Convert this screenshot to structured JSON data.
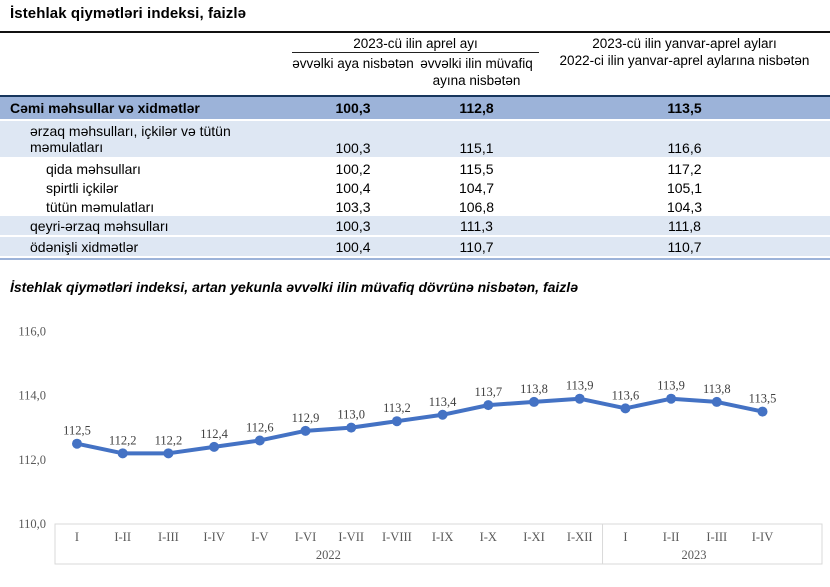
{
  "page_title": "İstehlak qiymətləri indeksi, faizlə",
  "table": {
    "group_header": "2023-cü ilin aprel ayı",
    "col2_header": "əvvəlki aya nisbətən",
    "col3_header": "əvvəlki ilin müvafiq ayına nisbətən",
    "col4_header_line1": "2023-cü ilin yanvar-aprel ayları",
    "col4_header_line2": "2022-ci ilin yanvar-aprel aylarına nisbətən",
    "rows": [
      {
        "label": "Cəmi məhsullar və xidmətlər",
        "values": [
          "100,3",
          "112,8",
          "113,5"
        ],
        "style": "total"
      },
      {
        "label": "ərzaq məhsulları, içkilər və tütün məmulatları",
        "values": [
          "100,3",
          "115,1",
          "116,6"
        ],
        "style": "group tall"
      },
      {
        "label": "qida məhsulları",
        "values": [
          "100,2",
          "115,5",
          "117,2"
        ],
        "style": "sub"
      },
      {
        "label": "spirtli içkilər",
        "values": [
          "100,4",
          "104,7",
          "105,1"
        ],
        "style": "sub"
      },
      {
        "label": "tütün məmulatları",
        "values": [
          "103,3",
          "106,8",
          "104,3"
        ],
        "style": "sub"
      },
      {
        "label": "qeyri-ərzaq məhsulları",
        "values": [
          "100,3",
          "111,3",
          "111,8"
        ],
        "style": "group"
      },
      {
        "label": "ödənişli xidmətlər",
        "values": [
          "100,4",
          "110,7",
          "110,7"
        ],
        "style": "group"
      }
    ]
  },
  "chart_data": {
    "type": "line",
    "title": "İstehlak qiymətləri indeksi, artan yekunla əvvəlki ilin müvafiq dövrünə nisbətən, faizlə",
    "categories": [
      "I",
      "I-II",
      "I-III",
      "I-IV",
      "I-V",
      "I-VI",
      "I-VII",
      "I-VIII",
      "I-IX",
      "I-X",
      "I-XI",
      "I-XII",
      "I",
      "I-II",
      "I-III",
      "I-IV"
    ],
    "values": [
      112.5,
      112.2,
      112.2,
      112.4,
      112.6,
      112.9,
      113.0,
      113.2,
      113.4,
      113.7,
      113.8,
      113.9,
      113.6,
      113.9,
      113.8,
      113.5
    ],
    "value_labels": [
      "112,5",
      "112,2",
      "112,2",
      "112,4",
      "112,6",
      "112,9",
      "113,0",
      "113,2",
      "113,4",
      "113,7",
      "113,8",
      "113,9",
      "113,6",
      "113,9",
      "113,8",
      "113,5"
    ],
    "groups": [
      {
        "label": "2022",
        "count": 12
      },
      {
        "label": "2023",
        "count": 4
      }
    ],
    "y_ticks": [
      {
        "value": 110,
        "label": "110,0"
      },
      {
        "value": 112,
        "label": "112,0"
      },
      {
        "value": 114,
        "label": "114,0"
      },
      {
        "value": 116,
        "label": "116,0"
      }
    ],
    "ylim": [
      110,
      116
    ],
    "grid": false,
    "legend": "none",
    "colors": {
      "line": "#4472C4",
      "marker": "#4472C4",
      "axis_text": "#595959",
      "data_label_text": "#404040",
      "axis_box_border": "#D9D9D9"
    }
  },
  "theme_colors": {
    "total_row_bg": "#9CB3D9",
    "alt_row_bg": "#DEE7F3",
    "total_row_top_border": "#17365D",
    "title_rule": "#111111"
  }
}
